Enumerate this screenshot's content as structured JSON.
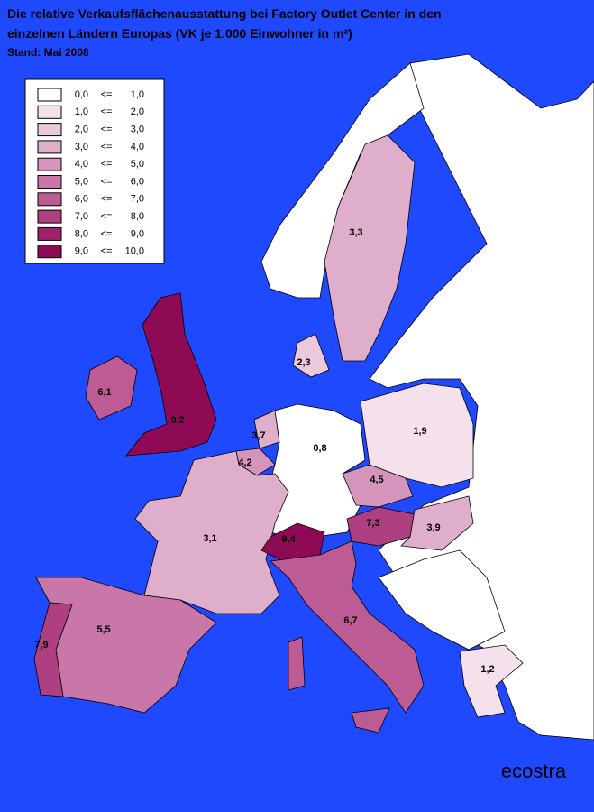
{
  "title": [
    "Die relative Verkaufsflächenausstattung bei Factory Outlet Center in den",
    "einzelnen Ländern Europas (VK je 1.000 Einwohner in m²)"
  ],
  "subtitle": "Stand: Mai 2008",
  "legend": [
    {
      "from": "0,0",
      "op": "<=",
      "to": "1,0",
      "color": "#ffffff"
    },
    {
      "from": "1,0",
      "op": "<=",
      "to": "2,0",
      "color": "#f5e1ec"
    },
    {
      "from": "2,0",
      "op": "<=",
      "to": "3,0",
      "color": "#ebc9dc"
    },
    {
      "from": "3,0",
      "op": "<=",
      "to": "4,0",
      "color": "#dfaecb"
    },
    {
      "from": "4,0",
      "op": "<=",
      "to": "5,0",
      "color": "#d494bb"
    },
    {
      "from": "5,0",
      "op": "<=",
      "to": "6,0",
      "color": "#c977a8"
    },
    {
      "from": "6,0",
      "op": "<=",
      "to": "7,0",
      "color": "#bc5b94"
    },
    {
      "from": "7,0",
      "op": "<=",
      "to": "8,0",
      "color": "#ae3f80"
    },
    {
      "from": "8,0",
      "op": "<=",
      "to": "9,0",
      "color": "#9e2169"
    },
    {
      "from": "9,0",
      "op": "<=",
      "to": "10,0",
      "color": "#8e0a55"
    }
  ],
  "regions": [
    {
      "label": "3,3",
      "color": "#dfaecb"
    },
    {
      "label": "2,3",
      "color": "#ebc9dc"
    },
    {
      "label": "6,1",
      "color": "#bc5b94"
    },
    {
      "label": "9,2",
      "color": "#8e0a55"
    },
    {
      "label": "3,7",
      "color": "#dfaecb"
    },
    {
      "label": "4,2",
      "color": "#d494bb"
    },
    {
      "label": "0,8",
      "color": "#ffffff"
    },
    {
      "label": "1,9",
      "color": "#f5e1ec"
    },
    {
      "label": "4,5",
      "color": "#d494bb"
    },
    {
      "label": "3,1",
      "color": "#dfaecb"
    },
    {
      "label": "7,3",
      "color": "#ae3f80"
    },
    {
      "label": "9,4",
      "color": "#8e0a55"
    },
    {
      "label": "3,9",
      "color": "#dfaecb"
    },
    {
      "label": "5,5",
      "color": "#c977a8"
    },
    {
      "label": "7,9",
      "color": "#ae3f80"
    },
    {
      "label": "6,7",
      "color": "#bc5b94"
    },
    {
      "label": "1,2",
      "color": "#f5e1ec"
    }
  ],
  "brand": "ecostra"
}
